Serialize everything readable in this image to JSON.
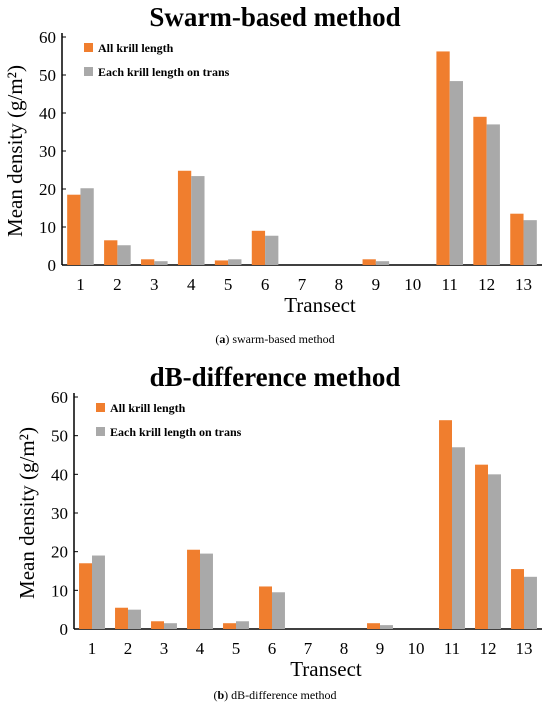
{
  "colors": {
    "all": "#F07E2E",
    "each": "#A9A9A9"
  },
  "captions": [
    {
      "letter": "a",
      "text": "swarm-based method"
    },
    {
      "letter": "b",
      "text": "dB-difference method"
    }
  ],
  "chart_data": [
    {
      "type": "bar",
      "title": "Swarm-based method",
      "xlabel": "Transect",
      "ylabel": "Mean density (g/m²)",
      "ylim": [
        0,
        60
      ],
      "yticks": [
        0,
        10,
        20,
        30,
        40,
        50,
        60
      ],
      "categories": [
        "1",
        "2",
        "3",
        "4",
        "5",
        "6",
        "7",
        "8",
        "9",
        "10",
        "11",
        "12",
        "13"
      ],
      "legend_position": "top-left",
      "series": [
        {
          "name": "All krill length",
          "values": [
            18.5,
            6.5,
            1.5,
            24.8,
            1.2,
            9.0,
            0,
            0,
            1.5,
            0,
            56.2,
            39.0,
            13.5
          ]
        },
        {
          "name": "Each krill length on trans",
          "values": [
            20.2,
            5.2,
            1.0,
            23.4,
            1.5,
            7.7,
            0,
            0,
            1.0,
            0,
            48.4,
            37.0,
            11.8
          ]
        }
      ]
    },
    {
      "type": "bar",
      "title": "dB-difference method",
      "xlabel": "Transect",
      "ylabel": "Mean density (g/m²)",
      "ylim": [
        0,
        60
      ],
      "yticks": [
        0,
        10,
        20,
        30,
        40,
        50,
        60
      ],
      "categories": [
        "1",
        "2",
        "3",
        "4",
        "5",
        "6",
        "7",
        "8",
        "9",
        "10",
        "11",
        "12",
        "13"
      ],
      "legend_position": "top-left",
      "series": [
        {
          "name": "All krill length",
          "values": [
            17.0,
            5.5,
            2.0,
            20.5,
            1.5,
            11.0,
            0,
            0,
            1.5,
            0,
            54.0,
            42.5,
            15.5
          ]
        },
        {
          "name": "Each krill length on trans",
          "values": [
            19.0,
            5.0,
            1.5,
            19.5,
            2.0,
            9.5,
            0,
            0,
            1.0,
            0,
            47.0,
            40.0,
            13.5
          ]
        }
      ]
    }
  ]
}
